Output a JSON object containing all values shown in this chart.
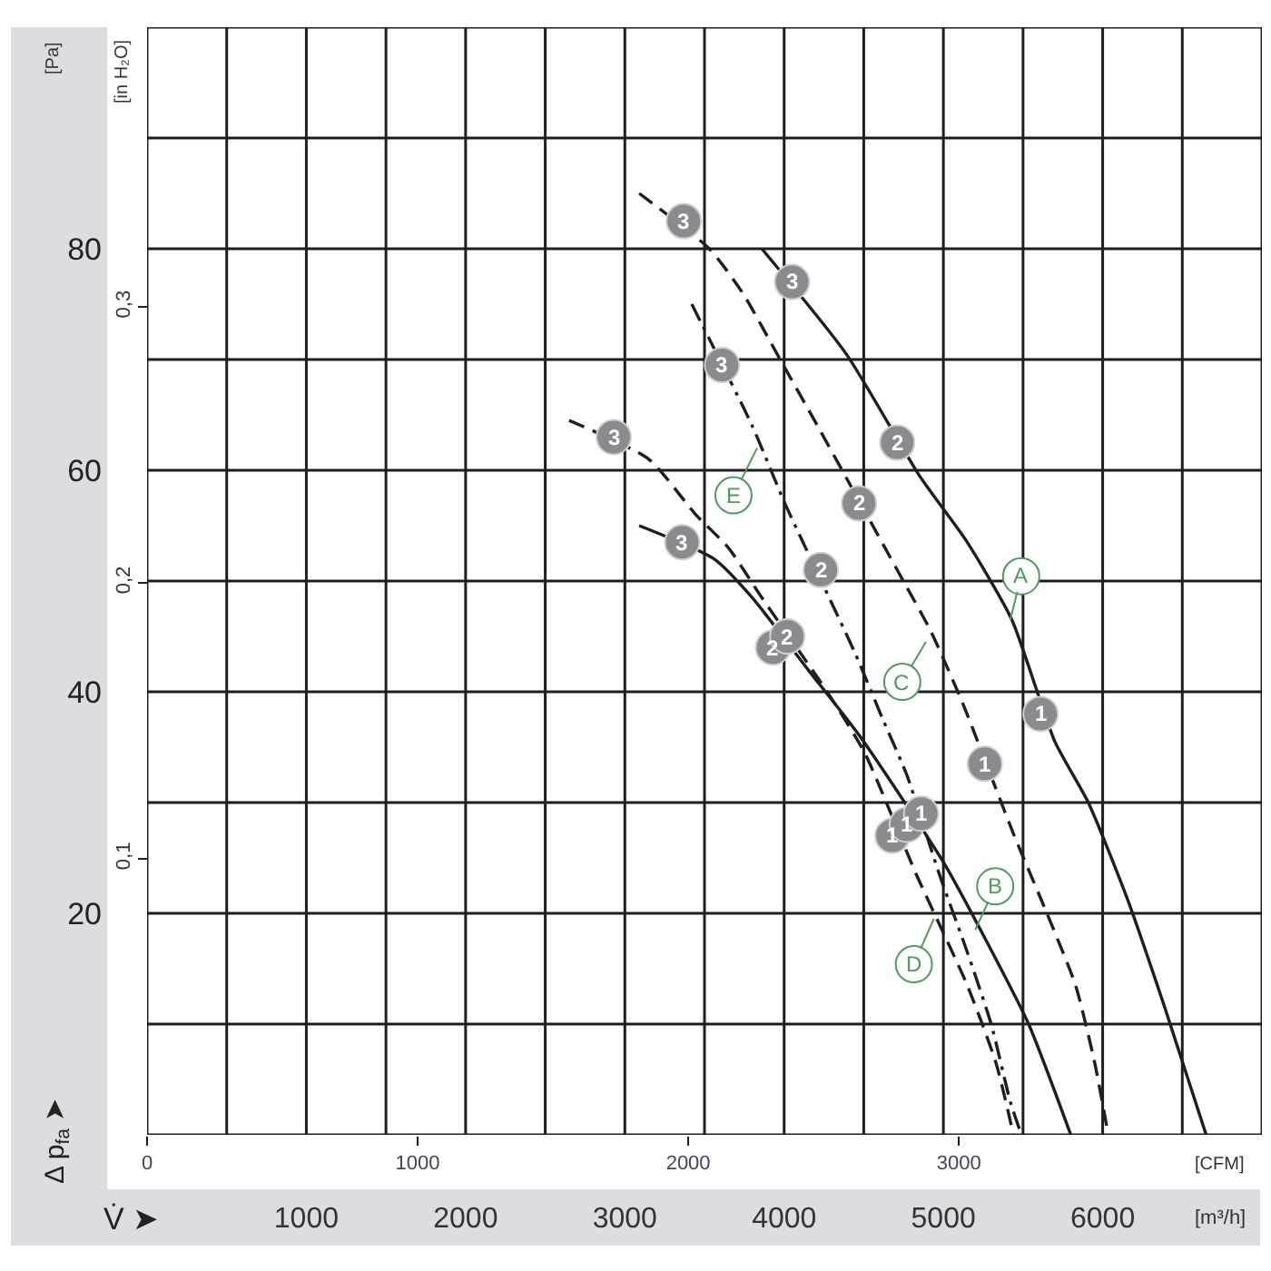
{
  "chart_data": {
    "type": "line",
    "xlabel": "[m³/h]",
    "ylabel": "[Pa]",
    "x2label": "[CFM]",
    "y2label": "[in H₂O]",
    "xlim": [
      0,
      7000
    ],
    "xticks": [
      {
        "value": 0,
        "label": null
      },
      {
        "value": 500,
        "label": null
      },
      1000,
      {
        "value": 1500,
        "label": null
      },
      2000,
      {
        "value": 2500,
        "label": null
      },
      3000,
      {
        "value": 3500,
        "label": null
      },
      4000,
      {
        "value": 4500,
        "label": null
      },
      5000,
      {
        "value": 5500,
        "label": null
      },
      6000,
      {
        "value": 6500,
        "label": null
      },
      {
        "value": 7000,
        "label": null
      }
    ],
    "ylim": [
      0,
      100
    ],
    "yticks": [
      {
        "value": 0,
        "label": null
      },
      {
        "value": 10,
        "label": null
      },
      20,
      {
        "value": 30,
        "label": null
      },
      40,
      {
        "value": 50,
        "label": null
      },
      60,
      {
        "value": 70,
        "label": null
      },
      80,
      {
        "value": 90,
        "label": null
      },
      {
        "value": 100,
        "label": null
      }
    ],
    "x2lim": [
      0,
      4120
    ],
    "x2ticks": [
      0,
      1000,
      2000,
      3000
    ],
    "y2lim": [
      0,
      0.4015
    ],
    "y2ticks": [
      {
        "value": 0.1,
        "label": "0,1"
      },
      {
        "value": 0.2,
        "label": "0,2"
      },
      {
        "value": 0.3,
        "label": "0,3"
      }
    ],
    "grid": true,
    "annotations": [
      "Δ p$_{fa}$ ➤",
      "V̇ ➤",
      {
        "text": "A",
        "x": 5420,
        "y": 46.5
      },
      {
        "text": "B",
        "x": 5200,
        "y": 18.5
      },
      {
        "text": "C",
        "x": 4890,
        "y": 44.5
      },
      {
        "text": "D",
        "x": 4940,
        "y": 19.5
      },
      {
        "text": "E",
        "x": 3830,
        "y": 62
      },
      {
        "text": "3",
        "x": 4050,
        "y": 77
      },
      {
        "text": "2",
        "x": 4710,
        "y": 62.5
      },
      {
        "text": "1",
        "x": 5610,
        "y": 38
      },
      {
        "text": "3",
        "x": 3370,
        "y": 82.5
      },
      {
        "text": "2",
        "x": 4470,
        "y": 57
      },
      {
        "text": "1",
        "x": 5260,
        "y": 33.5
      },
      {
        "text": "3",
        "x": 3610,
        "y": 69.5
      },
      {
        "text": "2",
        "x": 4230,
        "y": 51
      },
      {
        "text": "3",
        "x": 2930,
        "y": 63
      },
      {
        "text": "3",
        "x": 3360,
        "y": 53.5
      },
      {
        "text": "2",
        "x": 3930,
        "y": 44
      },
      {
        "text": "2",
        "x": 4020,
        "y": 45
      },
      {
        "text": "1",
        "x": 4680,
        "y": 27
      },
      {
        "text": "1",
        "x": 4770,
        "y": 28
      },
      {
        "text": "1",
        "x": 4860,
        "y": 29
      }
    ],
    "series": [
      {
        "color": "#1e1e1e",
        "line_style": "solid",
        "x": [
          3860,
          4390,
          4850,
          5150,
          5430,
          5700,
          5910,
          6150,
          6390,
          6650
        ],
        "values": [
          80,
          70.5,
          59.5,
          53.5,
          46.5,
          35.5,
          30,
          21.5,
          11.5,
          0
        ]
      },
      {
        "color": "#1e1e1e",
        "line_style": "solid",
        "x": [
          3090,
          3560,
          3800,
          4150,
          4475,
          5005,
          5270,
          5535,
          5800
        ],
        "values": [
          55,
          52,
          48.5,
          42,
          36,
          24.5,
          17.5,
          10,
          0
        ]
      },
      {
        "color": "#1e1e1e",
        "line_style": "dashed",
        "x": [
          3090,
          3530,
          3740,
          3975,
          4210,
          4710,
          4920,
          5120,
          5445,
          5650,
          5830,
          5950,
          6035
        ],
        "values": [
          85,
          80,
          76,
          70,
          64,
          51,
          45.5,
          39,
          27,
          20,
          13.5,
          6.5,
          0
        ]
      },
      {
        "color": "#1e1e1e",
        "line_style": "dashed",
        "x": [
          2650,
          3150,
          3445,
          3650,
          3860,
          4270,
          4505,
          4830,
          4975,
          5150,
          5330,
          5440
        ],
        "values": [
          64.5,
          61,
          56,
          53,
          48.5,
          40,
          34.5,
          23.5,
          19,
          13.5,
          6.5,
          0
        ]
      },
      {
        "color": "#1e1e1e",
        "line_style": "dashdot",
        "x": [
          3420,
          3800,
          4005,
          4445,
          4620,
          4770,
          4975,
          5150,
          5300,
          5420,
          5490
        ],
        "values": [
          75,
          64,
          57,
          43.5,
          37.5,
          32.5,
          23.5,
          16.5,
          10,
          3,
          0
        ]
      },
      {
        "type": "scatter",
        "color": "#8a8b8f",
        "marker": "circle",
        "x": [
          4050,
          4710,
          5610,
          3370,
          4470,
          5260,
          3610,
          4230,
          2930,
          3360,
          3930,
          4020,
          4680,
          4770,
          4860
        ],
        "values": [
          77,
          62.5,
          38,
          82.5,
          57,
          33.5,
          69.5,
          51,
          63,
          53.5,
          44,
          45,
          27,
          28,
          29
        ]
      }
    ]
  }
}
